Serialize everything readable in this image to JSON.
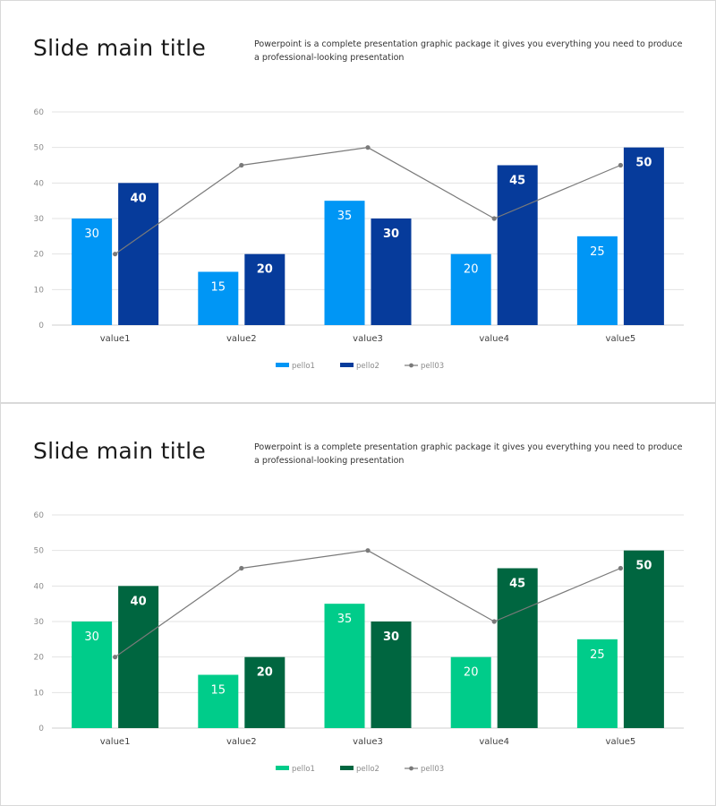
{
  "slides": [
    {
      "title": "Slide main title",
      "description": "Powerpoint is a complete presentation graphic package it gives you everything you need to produce a professional-looking presentation",
      "colors": {
        "series1": "#0096f5",
        "series2": "#063b9b",
        "line": "#7a7a7a",
        "grid": "#e3e3e3"
      }
    },
    {
      "title": "Slide main title",
      "description": "Powerpoint is a complete presentation graphic package it gives you everything you need to produce a professional-looking presentation",
      "colors": {
        "series1": "#00cc8a",
        "series2": "#006640",
        "line": "#7a7a7a",
        "grid": "#e3e3e3"
      }
    }
  ],
  "chart_data": [
    {
      "type": "bar",
      "categories": [
        "value1",
        "value2",
        "value3",
        "value4",
        "value5"
      ],
      "series": [
        {
          "name": "pello1",
          "kind": "bar",
          "values": [
            30,
            15,
            35,
            20,
            25
          ]
        },
        {
          "name": "pello2",
          "kind": "bar",
          "values": [
            40,
            20,
            30,
            45,
            50
          ]
        },
        {
          "name": "pell03",
          "kind": "line",
          "values": [
            20,
            45,
            50,
            30,
            45
          ]
        }
      ],
      "yticks": [
        "0",
        "10",
        "20",
        "30",
        "40",
        "50",
        "60"
      ],
      "ylim": [
        0,
        60
      ],
      "grid": true,
      "legend": "bottom",
      "data_labels": true
    },
    {
      "type": "bar",
      "categories": [
        "value1",
        "value2",
        "value3",
        "value4",
        "value5"
      ],
      "series": [
        {
          "name": "pello1",
          "kind": "bar",
          "values": [
            30,
            15,
            35,
            20,
            25
          ]
        },
        {
          "name": "pello2",
          "kind": "bar",
          "values": [
            40,
            20,
            30,
            45,
            50
          ]
        },
        {
          "name": "pell03",
          "kind": "line",
          "values": [
            20,
            45,
            50,
            30,
            45
          ]
        }
      ],
      "yticks": [
        "0",
        "10",
        "20",
        "30",
        "40",
        "50",
        "60"
      ],
      "ylim": [
        0,
        60
      ],
      "grid": true,
      "legend": "bottom",
      "data_labels": true
    }
  ]
}
